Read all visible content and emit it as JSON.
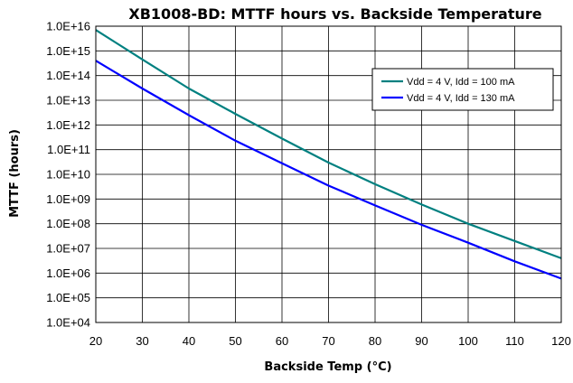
{
  "chart_data": {
    "type": "line",
    "title": "XB1008-BD: MTTF hours vs. Backside Temperature",
    "xlabel": "Backside Temp (°C)",
    "ylabel": "MTTF (hours)",
    "xlim": [
      20,
      120
    ],
    "ylim_log10": [
      4,
      16
    ],
    "yscale": "log",
    "grid": true,
    "legend_position": "top-right",
    "x_ticks": [
      "20",
      "30",
      "40",
      "50",
      "60",
      "70",
      "80",
      "90",
      "100",
      "110",
      "120"
    ],
    "y_ticks": [
      "1.0E+04",
      "1.0E+05",
      "1.0E+06",
      "1.0E+07",
      "1.0E+08",
      "1.0E+09",
      "1.0E+10",
      "1.0E+11",
      "1.0E+12",
      "1.0E+13",
      "1.0E+14",
      "1.0E+15",
      "1.0E+16"
    ],
    "x": [
      20,
      30,
      40,
      50,
      60,
      70,
      80,
      90,
      100,
      110,
      120
    ],
    "series": [
      {
        "name": "Vdd = 4 V, Idd = 100 mA",
        "color": "#008080",
        "values": [
          7000000000000000.0,
          450000000000000.0,
          30000000000000.0,
          2800000000000.0,
          280000000000.0,
          30000000000.0,
          4000000000.0,
          600000000.0,
          100000000.0,
          20000000.0,
          4000000.0
        ]
      },
      {
        "name": "Vdd = 4 V, Idd = 130 mA",
        "color": "#0000ff",
        "values": [
          400000000000000.0,
          30000000000000.0,
          2500000000000.0,
          230000000000.0,
          28000000000.0,
          3500000000.0,
          550000000.0,
          90000000.0,
          17000000.0,
          3000000.0,
          600000.0
        ]
      }
    ]
  }
}
